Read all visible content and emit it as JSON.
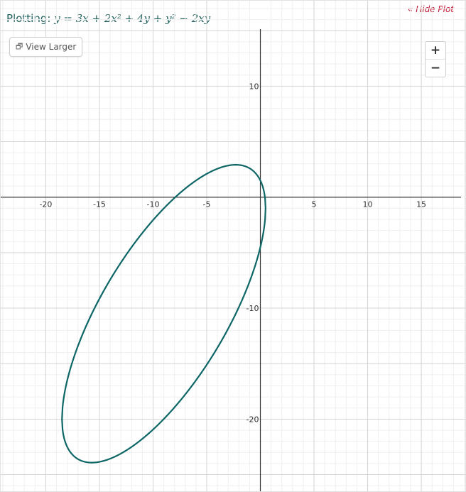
{
  "header": {
    "label": "Plotting:",
    "equation": "y = 3x + 2x² + 4y + y² − 2xy",
    "hide_plot": "« Hide Plot"
  },
  "controls": {
    "view_larger": "View Larger",
    "view_larger_icon": "window-restore-icon",
    "zoom_in": "+",
    "zoom_out": "−"
  },
  "colors": {
    "curve": "#0e6666",
    "axis": "#333333",
    "grid_major": "#d4d4d4",
    "grid_minor": "#efefef",
    "equation_text": "#1f5f5c",
    "hide_link": "#c0152f"
  },
  "chart_data": {
    "type": "line",
    "equation": "y = 3x + 2x^2 + 4y + y^2 - 2xy",
    "curve": "ellipse: 2x^2 - 2xy + y^2 + 3x + 3y = 0",
    "xlim": [
      -24.2,
      19.1
    ],
    "ylim": [
      -26.5,
      17.7
    ],
    "major_step": 5,
    "minor_step": 1,
    "grid": true,
    "x_ticks": [
      -20,
      -15,
      -10,
      -5,
      5,
      10,
      15
    ],
    "x_tick_labels": [
      "-20",
      "-15",
      "-10",
      "-5",
      "5",
      "10",
      "15"
    ],
    "y_ticks": [
      10,
      -10,
      -20
    ],
    "y_tick_labels": [
      "10",
      "-10",
      "-20"
    ]
  }
}
